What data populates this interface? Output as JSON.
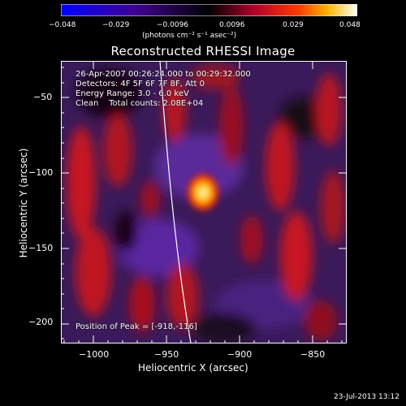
{
  "colorbar": {
    "tick_labels": [
      "−0.048",
      "−0.029",
      "−0.0096",
      "0.0096",
      "0.029",
      "0.048"
    ],
    "units_label": "(photons cm⁻² s⁻¹ asec⁻²)",
    "colors": [
      "#0000ff",
      "#000000",
      "#c8001f",
      "#ffff00",
      "#ffffff"
    ]
  },
  "title": "Reconstructed RHESSI Image",
  "info": {
    "time_range": "26-Apr-2007 00:26:24.000 to 00:29:32.000",
    "detectors": "Detectors: 4F 5F 6F 7F 8F, Att 0",
    "energy": "Energy Range: 3.0 - 6.0 keV",
    "clean": "Clean    Total counts: 2.08E+04",
    "peak": "Position of Peak = [-918,-116]"
  },
  "axes": {
    "x_ticks": [
      "−1000",
      "−950",
      "−900",
      "−850"
    ],
    "y_ticks": [
      "−50",
      "−100",
      "−150",
      "−200"
    ],
    "x_range": [
      -1015,
      -825
    ],
    "y_range": [
      -218,
      -30
    ],
    "xlabel": "Heliocentric X (arcsec)",
    "ylabel": "Heliocentric Y (arcsec)"
  },
  "timestamp": "23-Jul-2013 13:12"
}
